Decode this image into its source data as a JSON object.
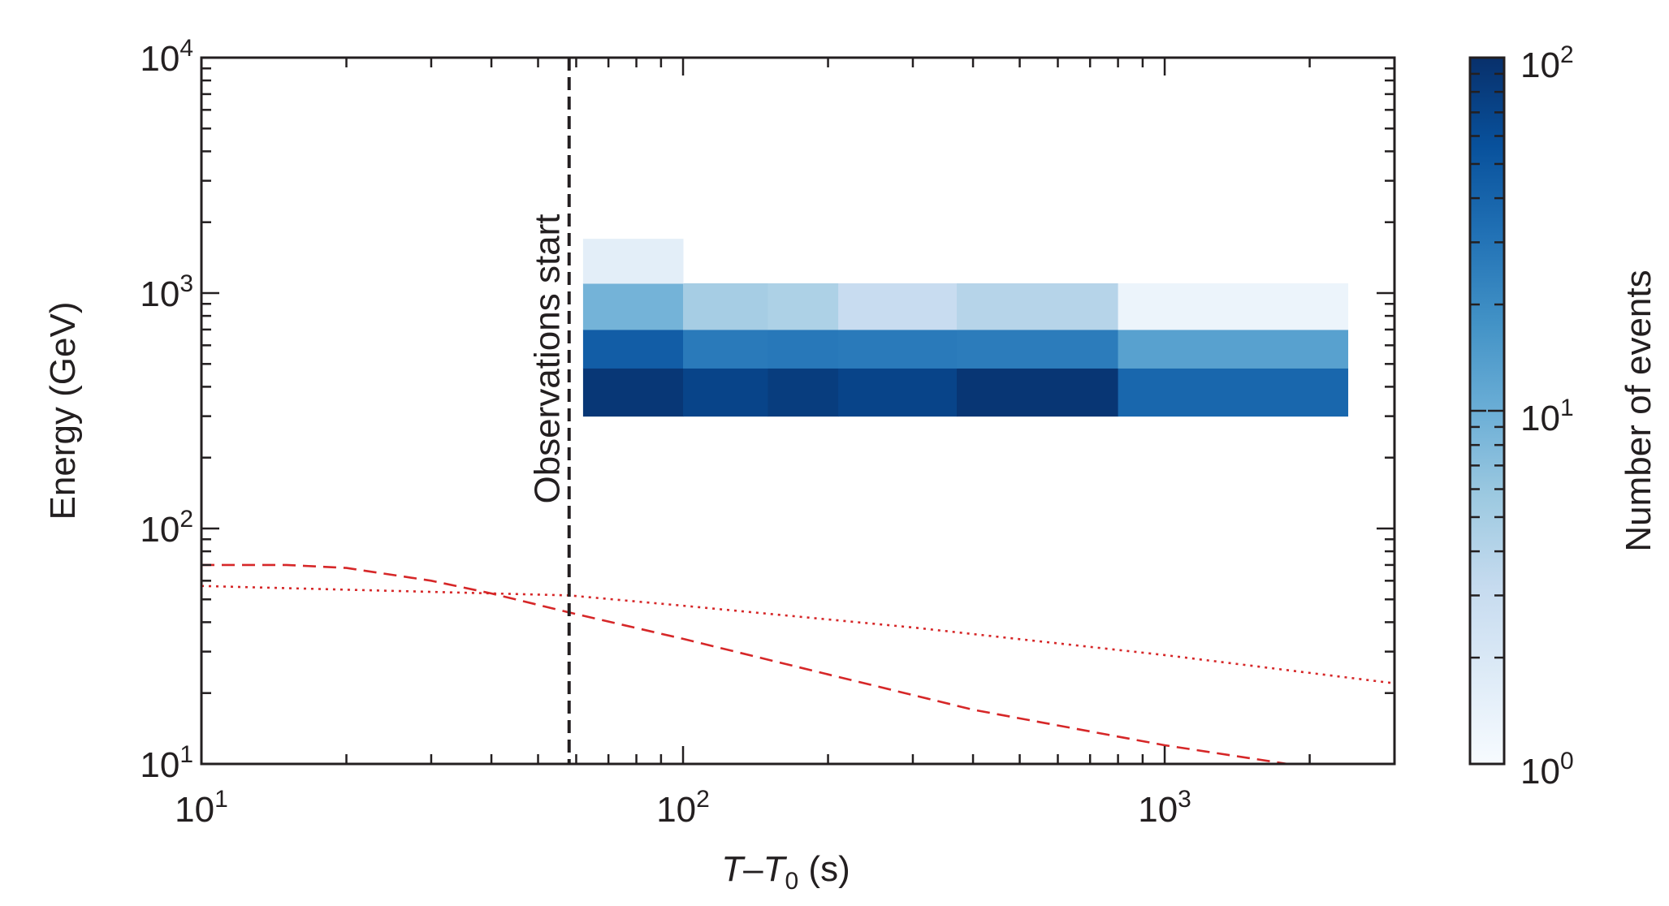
{
  "chart_data": {
    "type": "heatmap",
    "xlabel": {
      "italic_T": "T",
      "dash": "–",
      "italic_T0": "T",
      "sub0": "0",
      "unit": " (s)"
    },
    "ylabel": "Energy (GeV)",
    "xscale": "log",
    "yscale": "log",
    "xlim": [
      10,
      3000
    ],
    "ylim": [
      10,
      10000
    ],
    "x_ticks": [
      {
        "value": 10,
        "base": "10",
        "exp": "1"
      },
      {
        "value": 100,
        "base": "10",
        "exp": "2"
      },
      {
        "value": 1000,
        "base": "10",
        "exp": "3"
      }
    ],
    "y_ticks": [
      {
        "value": 10,
        "base": "10",
        "exp": "1"
      },
      {
        "value": 100,
        "base": "10",
        "exp": "2"
      },
      {
        "value": 1000,
        "base": "10",
        "exp": "3"
      },
      {
        "value": 10000,
        "base": "10",
        "exp": "4"
      }
    ],
    "time_bin_edges": [
      62,
      100,
      150,
      210,
      370,
      800,
      2400
    ],
    "energy_bin_edges": [
      300,
      480,
      700,
      1100,
      1700
    ],
    "counts": [
      [
        88,
        70,
        80,
        70,
        90,
        38
      ],
      [
        45,
        27,
        28,
        27,
        26,
        13
      ],
      [
        9,
        5,
        4.5,
        3,
        4,
        1.3
      ],
      [
        1.6,
        null,
        null,
        null,
        null,
        null
      ]
    ],
    "colorbar": {
      "label": "Number of events",
      "scale": "log",
      "range": [
        1,
        100
      ],
      "ticks": [
        {
          "value": 1,
          "base": "10",
          "exp": "0"
        },
        {
          "value": 10,
          "base": "10",
          "exp": "1"
        },
        {
          "value": 100,
          "base": "10",
          "exp": "2"
        }
      ],
      "colormap": [
        "#f7fbff",
        "#deebf7",
        "#c6dbef",
        "#9ecae1",
        "#6baed6",
        "#4292c6",
        "#2171b5",
        "#08519c",
        "#08306b"
      ]
    },
    "vline": {
      "x": 58,
      "label": "Observations start",
      "color": "#231f20",
      "style": "dashed"
    },
    "curves": [
      {
        "name": "model-dashed",
        "style": "dashed",
        "color": "#d62728",
        "points": [
          [
            10,
            70
          ],
          [
            15,
            70
          ],
          [
            20,
            68
          ],
          [
            30,
            60
          ],
          [
            40,
            53
          ],
          [
            58,
            44
          ],
          [
            100,
            34
          ],
          [
            200,
            24
          ],
          [
            400,
            17
          ],
          [
            1000,
            12
          ],
          [
            1800,
            10
          ]
        ]
      },
      {
        "name": "model-dotted",
        "style": "dotted",
        "color": "#d62728",
        "points": [
          [
            10,
            57
          ],
          [
            58,
            52
          ],
          [
            100,
            47
          ],
          [
            300,
            38
          ],
          [
            1000,
            29
          ],
          [
            3000,
            22
          ]
        ]
      }
    ]
  }
}
